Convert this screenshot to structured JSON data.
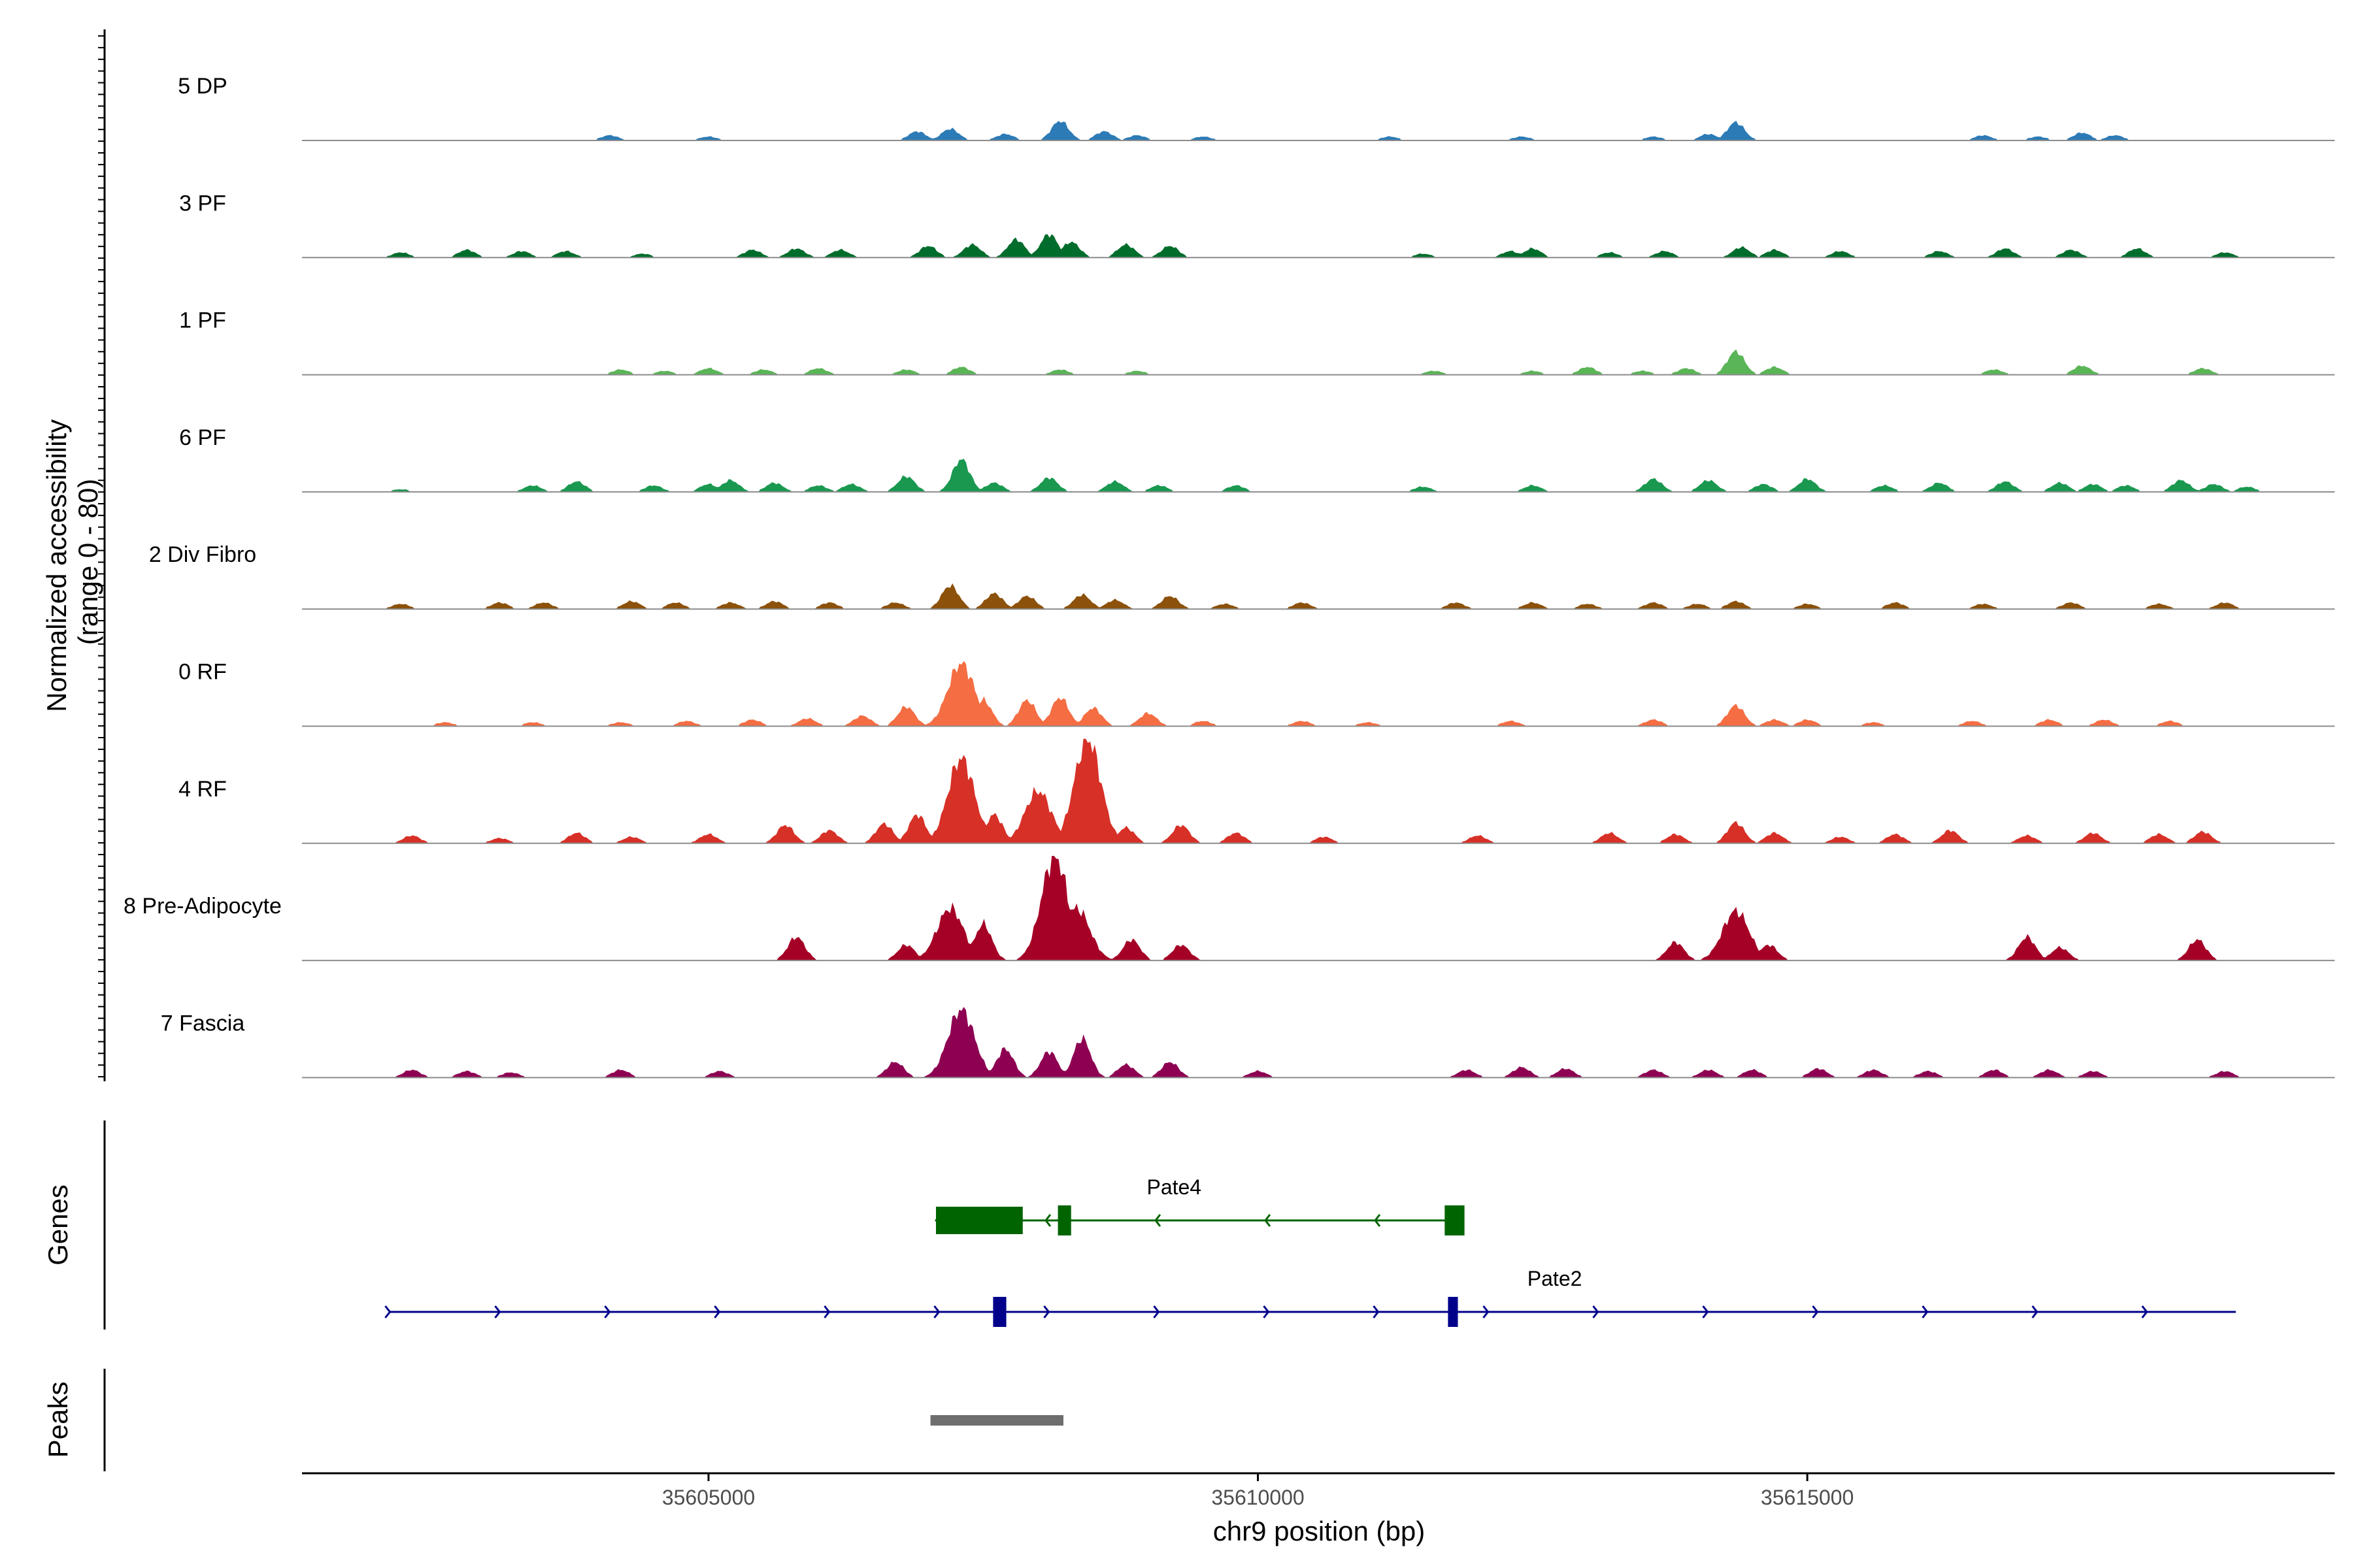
{
  "chart_data": {
    "type": "area",
    "title": "",
    "region": "chr9",
    "xlabel": "chr9 position (bp)",
    "ylabel": "Normalized accessibility\n(range 0 - 80)",
    "ylabel_lines": [
      "Normalized accessibility",
      "(range 0 - 80)"
    ],
    "ylim": [
      0,
      80
    ],
    "xlim": [
      35601300,
      35619800
    ],
    "xticks": [
      35605000,
      35610000,
      35615000
    ],
    "xtick_labels": [
      "35605000",
      "35610000",
      "35615000"
    ],
    "series": [
      {
        "name": "5 DP",
        "color": "#2c7bb6",
        "peaks": [
          [
            35604100,
            4
          ],
          [
            35605000,
            3
          ],
          [
            35606900,
            7
          ],
          [
            35607200,
            9
          ],
          [
            35607700,
            5
          ],
          [
            35608200,
            15
          ],
          [
            35608600,
            7
          ],
          [
            35608900,
            4
          ],
          [
            35609500,
            3
          ],
          [
            35611200,
            3
          ],
          [
            35612400,
            3
          ],
          [
            35613600,
            3
          ],
          [
            35614100,
            5
          ],
          [
            35614350,
            14
          ],
          [
            35616600,
            4
          ],
          [
            35617100,
            3
          ],
          [
            35617500,
            6
          ],
          [
            35617800,
            4
          ]
        ]
      },
      {
        "name": "3 PF",
        "color": "#006d2c",
        "peaks": [
          [
            35602200,
            4
          ],
          [
            35602800,
            6
          ],
          [
            35603300,
            5
          ],
          [
            35603700,
            5
          ],
          [
            35604400,
            3
          ],
          [
            35605400,
            6
          ],
          [
            35605800,
            7
          ],
          [
            35606200,
            6
          ],
          [
            35607000,
            9
          ],
          [
            35607400,
            10
          ],
          [
            35607800,
            14
          ],
          [
            35608100,
            18
          ],
          [
            35608300,
            12
          ],
          [
            35608800,
            10
          ],
          [
            35609200,
            9
          ],
          [
            35611500,
            3
          ],
          [
            35612300,
            5
          ],
          [
            35612500,
            7
          ],
          [
            35613200,
            4
          ],
          [
            35613700,
            5
          ],
          [
            35614400,
            8
          ],
          [
            35614700,
            6
          ],
          [
            35615300,
            5
          ],
          [
            35616200,
            5
          ],
          [
            35616800,
            7
          ],
          [
            35617400,
            6
          ],
          [
            35618000,
            7
          ],
          [
            35618800,
            4
          ]
        ]
      },
      {
        "name": "1 PF",
        "color": "#5ab556",
        "peaks": [
          [
            35604200,
            4
          ],
          [
            35604600,
            3
          ],
          [
            35605000,
            5
          ],
          [
            35605500,
            4
          ],
          [
            35606000,
            5
          ],
          [
            35606800,
            4
          ],
          [
            35607300,
            6
          ],
          [
            35608200,
            4
          ],
          [
            35608900,
            3
          ],
          [
            35611600,
            3
          ],
          [
            35612500,
            3
          ],
          [
            35613000,
            6
          ],
          [
            35613500,
            3
          ],
          [
            35613900,
            5
          ],
          [
            35614350,
            18
          ],
          [
            35614700,
            6
          ],
          [
            35616700,
            4
          ],
          [
            35617500,
            7
          ],
          [
            35618600,
            5
          ]
        ]
      },
      {
        "name": "6 PF",
        "color": "#1a9850",
        "peaks": [
          [
            35602200,
            2
          ],
          [
            35603400,
            5
          ],
          [
            35603800,
            8
          ],
          [
            35604500,
            5
          ],
          [
            35605000,
            6
          ],
          [
            35605200,
            9
          ],
          [
            35605600,
            7
          ],
          [
            35606000,
            5
          ],
          [
            35606300,
            6
          ],
          [
            35606800,
            12
          ],
          [
            35607300,
            25
          ],
          [
            35607600,
            7
          ],
          [
            35608100,
            11
          ],
          [
            35608700,
            8
          ],
          [
            35609100,
            5
          ],
          [
            35609800,
            5
          ],
          [
            35611500,
            4
          ],
          [
            35612500,
            5
          ],
          [
            35613600,
            10
          ],
          [
            35614100,
            9
          ],
          [
            35614600,
            6
          ],
          [
            35615000,
            10
          ],
          [
            35615700,
            5
          ],
          [
            35616200,
            7
          ],
          [
            35616800,
            8
          ],
          [
            35617300,
            7
          ],
          [
            35617600,
            6
          ],
          [
            35617900,
            5
          ],
          [
            35618400,
            9
          ],
          [
            35618700,
            6
          ],
          [
            35619000,
            4
          ]
        ]
      },
      {
        "name": "2 Div Fibro",
        "color": "#8c510a",
        "peaks": [
          [
            35602200,
            4
          ],
          [
            35603100,
            5
          ],
          [
            35603500,
            5
          ],
          [
            35604300,
            6
          ],
          [
            35604700,
            5
          ],
          [
            35605200,
            5
          ],
          [
            35605600,
            6
          ],
          [
            35606100,
            5
          ],
          [
            35606700,
            5
          ],
          [
            35607200,
            18
          ],
          [
            35607600,
            12
          ],
          [
            35607900,
            10
          ],
          [
            35608400,
            11
          ],
          [
            35608700,
            7
          ],
          [
            35609200,
            10
          ],
          [
            35609700,
            4
          ],
          [
            35610400,
            5
          ],
          [
            35611800,
            5
          ],
          [
            35612500,
            5
          ],
          [
            35613000,
            4
          ],
          [
            35613600,
            5
          ],
          [
            35614000,
            4
          ],
          [
            35614350,
            6
          ],
          [
            35615000,
            4
          ],
          [
            35615800,
            5
          ],
          [
            35616600,
            4
          ],
          [
            35617400,
            5
          ],
          [
            35618200,
            4
          ],
          [
            35618800,
            5
          ]
        ]
      },
      {
        "name": "0 RF",
        "color": "#f46d43",
        "peaks": [
          [
            35602600,
            3
          ],
          [
            35603400,
            3
          ],
          [
            35604200,
            3
          ],
          [
            35604800,
            4
          ],
          [
            35605400,
            5
          ],
          [
            35605900,
            6
          ],
          [
            35606400,
            8
          ],
          [
            35606800,
            15
          ],
          [
            35607300,
            48
          ],
          [
            35607500,
            20
          ],
          [
            35607900,
            20
          ],
          [
            35608200,
            22
          ],
          [
            35608500,
            14
          ],
          [
            35609000,
            10
          ],
          [
            35609500,
            4
          ],
          [
            35610400,
            4
          ],
          [
            35611000,
            3
          ],
          [
            35612300,
            4
          ],
          [
            35613600,
            5
          ],
          [
            35614350,
            16
          ],
          [
            35614700,
            5
          ],
          [
            35615000,
            5
          ],
          [
            35615600,
            3
          ],
          [
            35616500,
            4
          ],
          [
            35617200,
            5
          ],
          [
            35617700,
            5
          ],
          [
            35618300,
            4
          ]
        ]
      },
      {
        "name": "4 RF",
        "color": "#d73027",
        "peaks": [
          [
            35602300,
            6
          ],
          [
            35603100,
            4
          ],
          [
            35603800,
            8
          ],
          [
            35604300,
            5
          ],
          [
            35605000,
            7
          ],
          [
            35605700,
            14
          ],
          [
            35606100,
            10
          ],
          [
            35606600,
            15
          ],
          [
            35606900,
            22
          ],
          [
            35607300,
            65
          ],
          [
            35607600,
            22
          ],
          [
            35608000,
            40
          ],
          [
            35608450,
            80
          ],
          [
            35608800,
            12
          ],
          [
            35609300,
            14
          ],
          [
            35609800,
            8
          ],
          [
            35610600,
            5
          ],
          [
            35612000,
            6
          ],
          [
            35613200,
            8
          ],
          [
            35613800,
            7
          ],
          [
            35614350,
            16
          ],
          [
            35614700,
            8
          ],
          [
            35615300,
            5
          ],
          [
            35615800,
            7
          ],
          [
            35616300,
            10
          ],
          [
            35617000,
            6
          ],
          [
            35617600,
            8
          ],
          [
            35618200,
            7
          ],
          [
            35618600,
            9
          ]
        ]
      },
      {
        "name": "8 Pre-Adipocyte",
        "color": "#a50026",
        "peaks": [
          [
            35605800,
            18
          ],
          [
            35606800,
            12
          ],
          [
            35607200,
            40
          ],
          [
            35607500,
            28
          ],
          [
            35608150,
            80
          ],
          [
            35608350,
            40
          ],
          [
            35608850,
            16
          ],
          [
            35609300,
            12
          ],
          [
            35613800,
            14
          ],
          [
            35614350,
            38
          ],
          [
            35614650,
            12
          ],
          [
            35617000,
            18
          ],
          [
            35617300,
            10
          ],
          [
            35618550,
            16
          ]
        ]
      },
      {
        "name": "7 Fascia",
        "color": "#8e0152",
        "peaks": [
          [
            35602300,
            6
          ],
          [
            35602800,
            5
          ],
          [
            35603200,
            4
          ],
          [
            35604200,
            6
          ],
          [
            35605100,
            5
          ],
          [
            35606700,
            12
          ],
          [
            35607300,
            52
          ],
          [
            35607700,
            22
          ],
          [
            35608100,
            20
          ],
          [
            35608400,
            30
          ],
          [
            35608800,
            10
          ],
          [
            35609200,
            12
          ],
          [
            35610000,
            5
          ],
          [
            35611900,
            6
          ],
          [
            35612400,
            8
          ],
          [
            35612800,
            7
          ],
          [
            35613600,
            6
          ],
          [
            35614100,
            6
          ],
          [
            35614500,
            6
          ],
          [
            35615100,
            7
          ],
          [
            35615600,
            6
          ],
          [
            35616100,
            5
          ],
          [
            35616700,
            6
          ],
          [
            35617200,
            6
          ],
          [
            35617600,
            5
          ],
          [
            35618800,
            5
          ]
        ]
      }
    ],
    "genes": [
      {
        "name": "Pate4",
        "strand": "-",
        "color": "#006400",
        "start": 35607070,
        "end": 35611880,
        "exons": [
          [
            35607070,
            35607860
          ],
          [
            35608180,
            35608300
          ],
          [
            35611700,
            35611880
          ]
        ]
      },
      {
        "name": "Pate2",
        "strand": "+",
        "color": "#00008b",
        "start": 35602100,
        "end": 35618900,
        "exons": [
          [
            35607590,
            35607710
          ],
          [
            35611730,
            35611820
          ]
        ]
      }
    ],
    "genes_label": "Genes",
    "peaks_track": {
      "label": "Peaks",
      "color": "#6e6e6e",
      "regions": [
        [
          35607020,
          35608230
        ]
      ]
    }
  }
}
